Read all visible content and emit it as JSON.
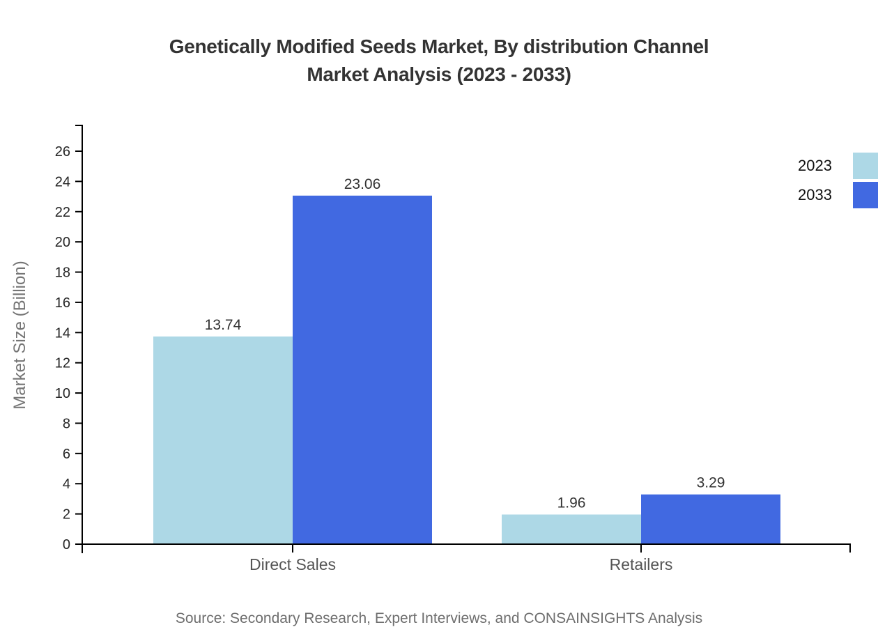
{
  "title": {
    "line1": "Genetically Modified Seeds Market, By distribution Channel",
    "line2": "Market Analysis (2023 - 2033)"
  },
  "source": "Source: Secondary Research, Expert Interviews, and CONSAINSIGHTS Analysis",
  "chart_data": {
    "type": "bar",
    "categories": [
      "Direct Sales",
      "Retailers"
    ],
    "series": [
      {
        "name": "2023",
        "color": "#ADD8E6",
        "values": [
          13.74,
          1.96
        ]
      },
      {
        "name": "2033",
        "color": "#4169E1",
        "values": [
          23.06,
          3.29
        ]
      }
    ],
    "value_labels": [
      "13.74",
      "23.06",
      "1.96",
      "3.29"
    ],
    "title": "Genetically Modified Seeds Market, By distribution Channel Market Analysis (2023 - 2033)",
    "xlabel": "",
    "ylabel": "Market Size (Billion)",
    "ylim": [
      0,
      26
    ],
    "yticks": [
      0,
      2,
      4,
      6,
      8,
      10,
      12,
      14,
      16,
      18,
      20,
      22,
      24,
      26
    ],
    "grid": false,
    "legend_position": "top-right",
    "axis_color": "#000000",
    "background_color": "#ffffff"
  }
}
